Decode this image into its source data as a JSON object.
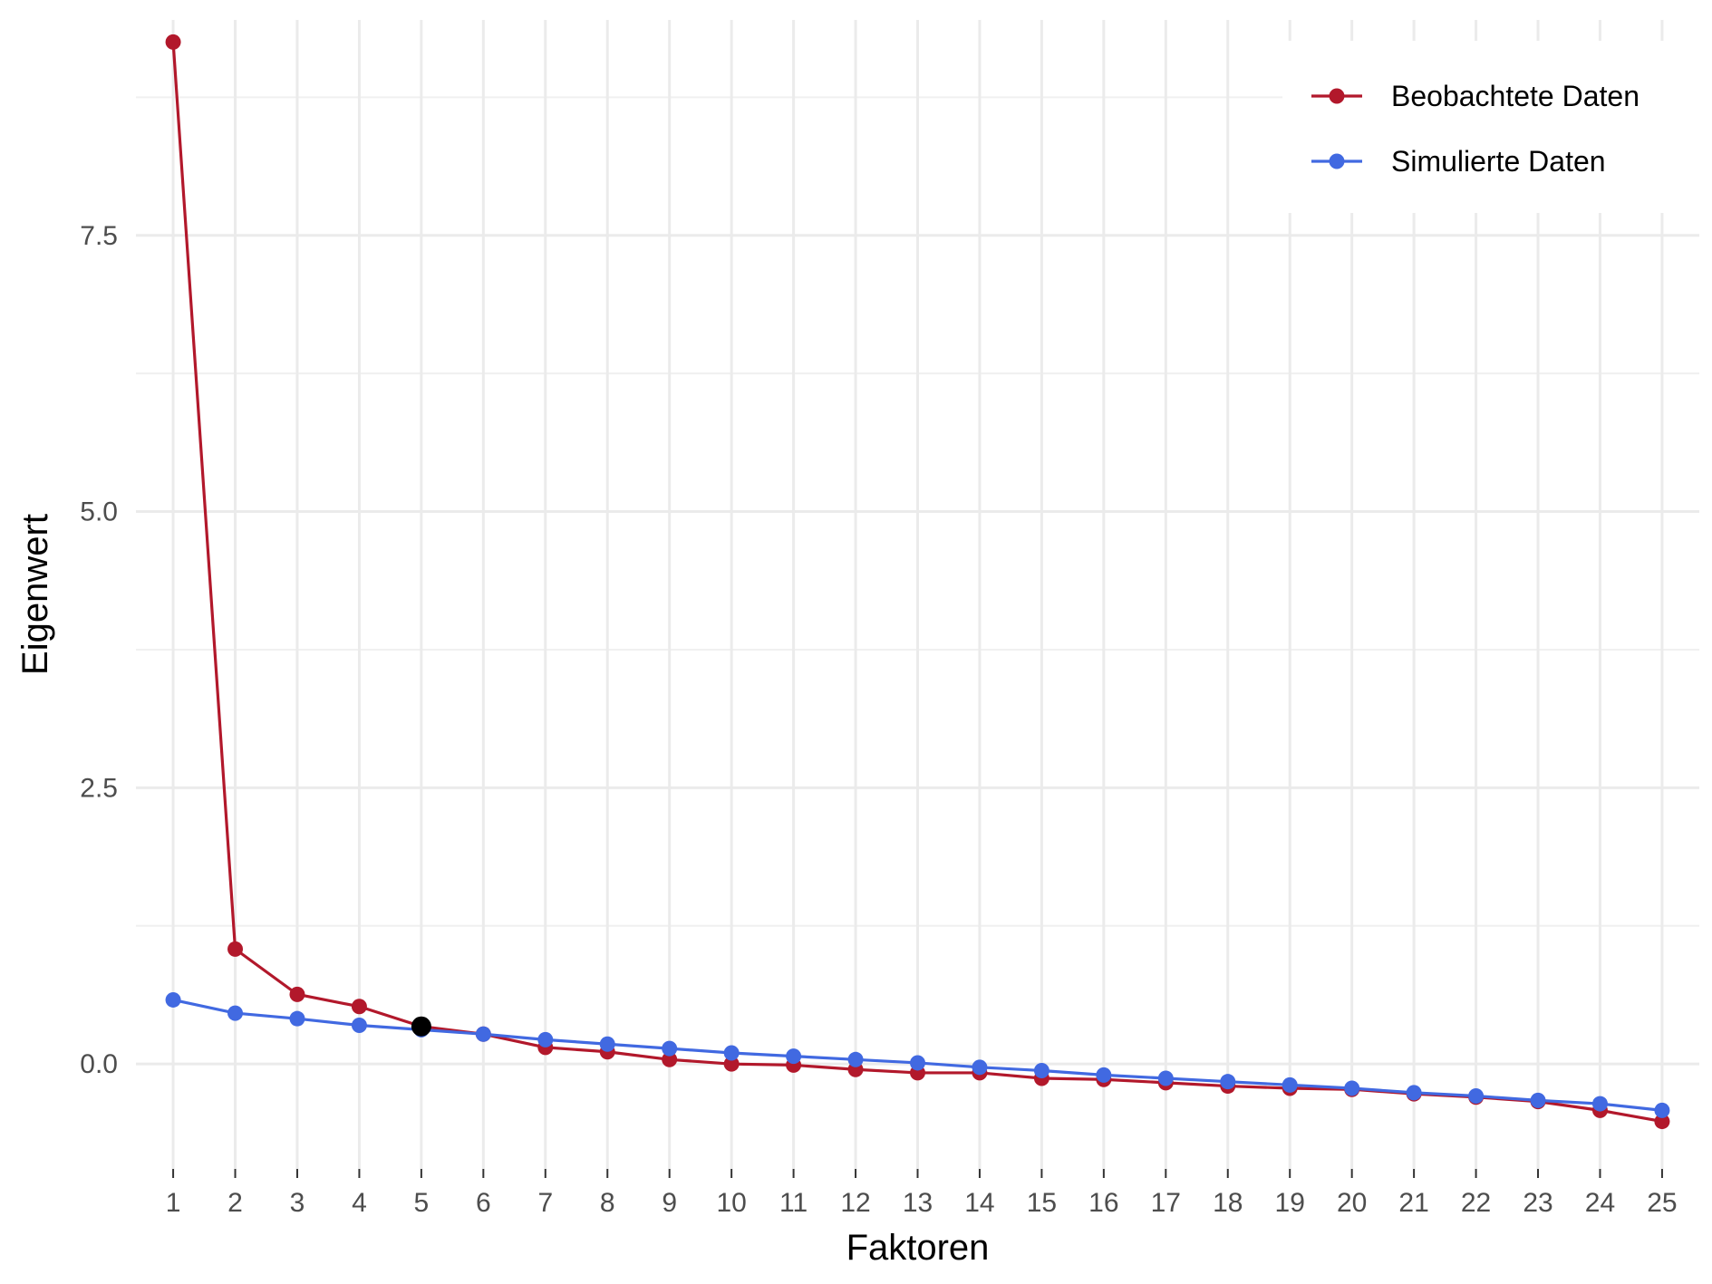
{
  "chart_data": {
    "type": "line",
    "title": "",
    "xlabel": "Faktoren",
    "ylabel": "Eigenwert",
    "x": [
      1,
      2,
      3,
      4,
      5,
      6,
      7,
      8,
      9,
      10,
      11,
      12,
      13,
      14,
      15,
      16,
      17,
      18,
      19,
      20,
      21,
      22,
      23,
      24,
      25
    ],
    "x_tick_labels": [
      "1",
      "2",
      "3",
      "4",
      "5",
      "6",
      "7",
      "8",
      "9",
      "10",
      "11",
      "12",
      "13",
      "14",
      "15",
      "16",
      "17",
      "18",
      "19",
      "20",
      "21",
      "22",
      "23",
      "24",
      "25"
    ],
    "y_ticks": [
      0.0,
      2.5,
      5.0,
      7.5
    ],
    "y_tick_labels": [
      "0.0",
      "2.5",
      "5.0",
      "7.5"
    ],
    "ylim": [
      -0.95,
      9.45
    ],
    "xlim": [
      0.4,
      25.6
    ],
    "grid": true,
    "legend_position": "top-right",
    "series": [
      {
        "name": "Beobachtete Daten",
        "color": "#B2182B",
        "values": [
          9.25,
          1.04,
          0.63,
          0.52,
          0.34,
          0.27,
          0.15,
          0.11,
          0.04,
          0.0,
          -0.01,
          -0.05,
          -0.08,
          -0.08,
          -0.13,
          -0.14,
          -0.17,
          -0.2,
          -0.22,
          -0.23,
          -0.27,
          -0.3,
          -0.34,
          -0.42,
          -0.52
        ]
      },
      {
        "name": "Simulierte Daten",
        "color": "#4169E1",
        "values": [
          0.58,
          0.46,
          0.41,
          0.35,
          0.31,
          0.27,
          0.22,
          0.18,
          0.14,
          0.1,
          0.07,
          0.04,
          0.01,
          -0.03,
          -0.06,
          -0.1,
          -0.13,
          -0.16,
          -0.19,
          -0.22,
          -0.26,
          -0.29,
          -0.33,
          -0.36,
          -0.42
        ]
      }
    ],
    "highlight_point": {
      "x": 5,
      "y": 0.34,
      "color": "#000000"
    }
  }
}
